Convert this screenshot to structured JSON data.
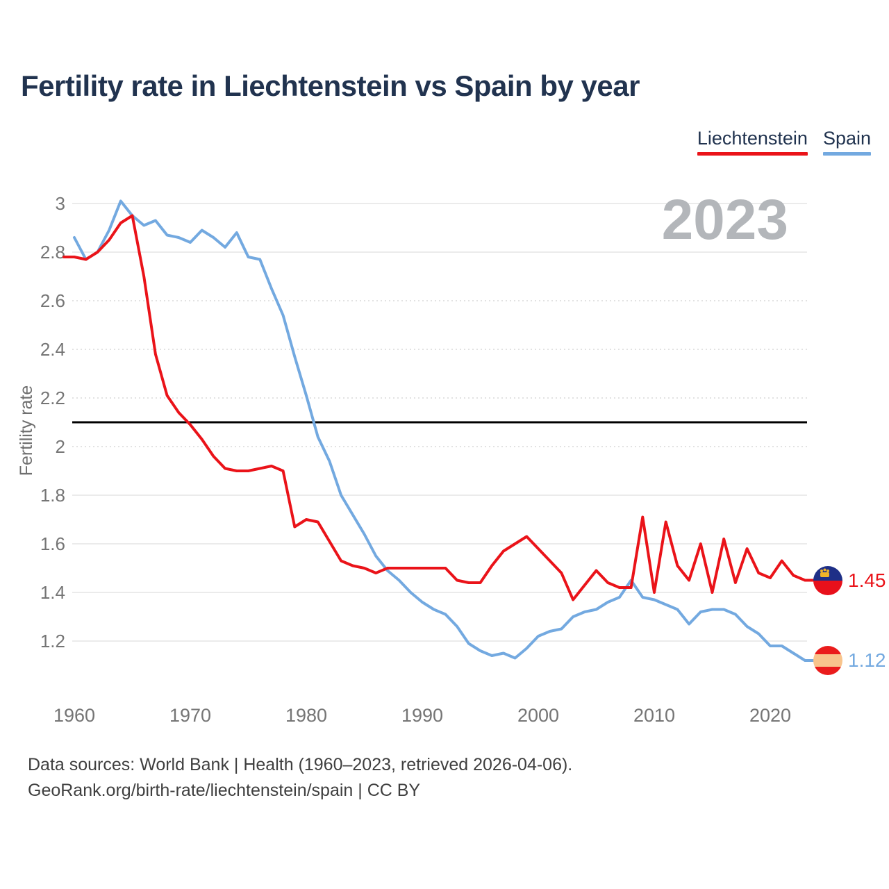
{
  "header": {
    "title": "Fertility rate in Liechtenstein vs Spain by year"
  },
  "legend": {
    "items": [
      {
        "label": "Liechtenstein",
        "color": "#ea1319"
      },
      {
        "label": "Spain",
        "color": "#73a9e0"
      }
    ]
  },
  "watermark": "2023",
  "end_labels": [
    {
      "series": "Liechtenstein",
      "value": "1.45",
      "flag": "liechtenstein-flag"
    },
    {
      "series": "Spain",
      "value": "1.12",
      "flag": "spain-flag"
    }
  ],
  "footer": {
    "line1": "Data sources: World Bank | Health (1960–2023, retrieved 2026-04-06).",
    "line2": "GeoRank.org/birth-rate/liechtenstein/spain | CC BY"
  },
  "chart_data": {
    "type": "line",
    "title": "Fertility rate in Liechtenstein vs Spain by year",
    "xlabel": "",
    "ylabel": "Fertility rate",
    "ylim": [
      1.05,
      3.05
    ],
    "xlim": [
      1959,
      2024
    ],
    "grid": true,
    "legend_position": "top-right",
    "reference_line": 2.1,
    "watermark_year": "2023",
    "yticks": [
      3,
      2.8,
      2.6,
      2.4,
      2.2,
      2,
      1.8,
      1.6,
      1.4,
      1.2
    ],
    "xticks": [
      1960,
      1970,
      1980,
      1990,
      2000,
      2010,
      2020
    ],
    "x": [
      1960,
      1961,
      1962,
      1963,
      1964,
      1965,
      1966,
      1967,
      1968,
      1969,
      1970,
      1971,
      1972,
      1973,
      1974,
      1975,
      1976,
      1977,
      1978,
      1979,
      1980,
      1981,
      1982,
      1983,
      1984,
      1985,
      1986,
      1987,
      1988,
      1989,
      1990,
      1991,
      1992,
      1993,
      1994,
      1995,
      1996,
      1997,
      1998,
      1999,
      2000,
      2001,
      2002,
      2003,
      2004,
      2005,
      2006,
      2007,
      2008,
      2009,
      2010,
      2011,
      2012,
      2013,
      2014,
      2015,
      2016,
      2017,
      2018,
      2019,
      2020,
      2021,
      2022,
      2023
    ],
    "series": [
      {
        "name": "Liechtenstein",
        "color": "#ea1319",
        "lead_in_years": 0.9,
        "values": [
          2.78,
          2.77,
          2.8,
          2.85,
          2.92,
          2.95,
          2.7,
          2.38,
          2.21,
          2.14,
          2.09,
          2.03,
          1.96,
          1.91,
          1.9,
          1.9,
          1.91,
          1.92,
          1.9,
          1.67,
          1.7,
          1.69,
          1.61,
          1.53,
          1.51,
          1.5,
          1.48,
          1.5,
          1.5,
          1.5,
          1.5,
          1.5,
          1.5,
          1.45,
          1.44,
          1.44,
          1.51,
          1.57,
          1.6,
          1.63,
          1.58,
          1.53,
          1.48,
          1.37,
          1.43,
          1.49,
          1.44,
          1.42,
          1.42,
          1.71,
          1.4,
          1.69,
          1.51,
          1.45,
          1.6,
          1.4,
          1.62,
          1.44,
          1.58,
          1.48,
          1.46,
          1.53,
          1.47,
          1.45
        ]
      },
      {
        "name": "Spain",
        "color": "#73a9e0",
        "lead_in_years": 0,
        "values": [
          2.86,
          2.77,
          2.8,
          2.89,
          3.01,
          2.95,
          2.91,
          2.93,
          2.87,
          2.86,
          2.84,
          2.89,
          2.86,
          2.82,
          2.88,
          2.78,
          2.77,
          2.65,
          2.54,
          2.37,
          2.21,
          2.04,
          1.94,
          1.8,
          1.72,
          1.64,
          1.55,
          1.49,
          1.45,
          1.4,
          1.36,
          1.33,
          1.31,
          1.26,
          1.19,
          1.16,
          1.14,
          1.15,
          1.13,
          1.17,
          1.22,
          1.24,
          1.25,
          1.3,
          1.32,
          1.33,
          1.36,
          1.38,
          1.45,
          1.38,
          1.37,
          1.35,
          1.33,
          1.27,
          1.32,
          1.33,
          1.33,
          1.31,
          1.26,
          1.23,
          1.18,
          1.18,
          1.15,
          1.12
        ]
      }
    ]
  }
}
